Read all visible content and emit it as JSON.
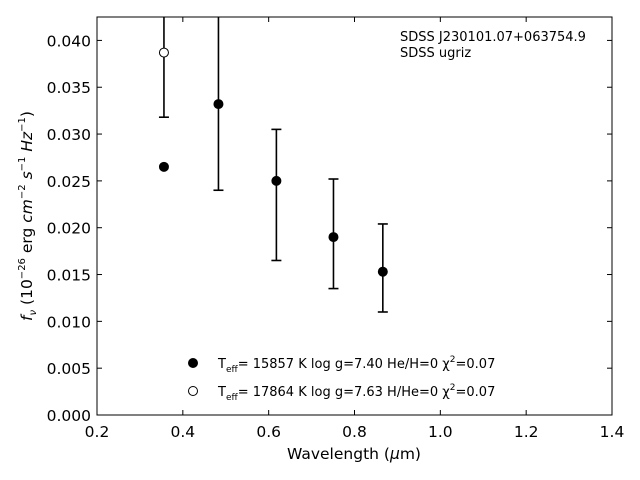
{
  "chart_data": {
    "type": "scatter",
    "xlabel": "Wavelength (μm)",
    "ylabel": "f_ν (10^−26 erg cm^−2 s^−1 Hz^−1)",
    "xlim": [
      0.2,
      1.4
    ],
    "ylim": [
      0.0,
      0.0425
    ],
    "x_ticks": [
      "0.2",
      "0.4",
      "0.6",
      "0.8",
      "1.0",
      "1.2",
      "1.4"
    ],
    "y_ticks": [
      "0.000",
      "0.005",
      "0.010",
      "0.015",
      "0.020",
      "0.025",
      "0.030",
      "0.035",
      "0.040"
    ],
    "grid": false,
    "annotations": [
      "SDSS J230101.07+063754.9",
      "SDSS ugriz"
    ],
    "errorbars": {
      "x": [
        0.356,
        0.483,
        0.618,
        0.751,
        0.866
      ],
      "y": [
        0.0387,
        0.0332,
        0.025,
        0.019,
        0.0153
      ],
      "yerr_low": [
        0.0318,
        0.024,
        0.0165,
        0.0135,
        0.011
      ],
      "yerr_high": [
        0.047,
        0.044,
        0.0305,
        0.0252,
        0.0204
      ]
    },
    "series": [
      {
        "marker": "filled",
        "legend": "T_eff= 15857 K  log g=7.40  He/H=0  χ²=0.07",
        "points": [
          {
            "x": 0.356,
            "y": 0.0265
          },
          {
            "x": 0.483,
            "y": 0.0332
          },
          {
            "x": 0.618,
            "y": 0.025
          },
          {
            "x": 0.751,
            "y": 0.019
          },
          {
            "x": 0.866,
            "y": 0.0153
          }
        ]
      },
      {
        "marker": "open",
        "legend": "T_eff= 17864 K  log g=7.63  H/He=0  χ²=0.07",
        "points": [
          {
            "x": 0.356,
            "y": 0.0387
          }
        ]
      }
    ],
    "legend_position": "bottom-center"
  }
}
